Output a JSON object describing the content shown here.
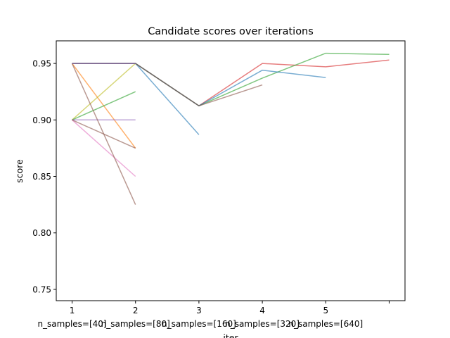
{
  "chart_data": {
    "type": "line",
    "title": "Candidate scores over iterations",
    "xlabel": "iter",
    "ylabel": "score",
    "xlim": [
      0.75,
      6.25
    ],
    "ylim": [
      0.74,
      0.97
    ],
    "x_ticks": [
      1,
      2,
      3,
      4,
      5,
      6
    ],
    "x_tick_labels": [
      "1",
      "2",
      "3",
      "4",
      "5",
      ""
    ],
    "y_ticks": [
      0.75,
      0.8,
      0.85,
      0.9,
      0.95
    ],
    "y_tick_labels": [
      "0.75",
      "0.80",
      "0.85",
      "0.90",
      "0.95"
    ],
    "secondary_x_labels": [
      {
        "x": 1,
        "text": "n_samples=[40]"
      },
      {
        "x": 2,
        "text": "n_samples=[80]"
      },
      {
        "x": 3,
        "text": "n_samples=[160]"
      },
      {
        "x": 4,
        "text": "n_samples=[320]"
      },
      {
        "x": 5,
        "text": "n_samples=[640]"
      }
    ],
    "grid": false,
    "series": [
      {
        "x": [
          1,
          2
        ],
        "values": [
          0.95,
          0.875
        ],
        "color": "#ff7f0e"
      },
      {
        "x": [
          1,
          2
        ],
        "values": [
          0.9,
          0.95
        ],
        "color": "#bcbd22"
      },
      {
        "x": [
          1,
          2
        ],
        "values": [
          0.9,
          0.925
        ],
        "color": "#2ca02c"
      },
      {
        "x": [
          1,
          2
        ],
        "values": [
          0.9,
          0.9
        ],
        "color": "#9467bd"
      },
      {
        "x": [
          1,
          2
        ],
        "values": [
          0.9,
          0.85
        ],
        "color": "#e377c2"
      },
      {
        "x": [
          1,
          2
        ],
        "values": [
          0.9,
          0.875
        ],
        "color": "#8c564b"
      },
      {
        "x": [
          1,
          2
        ],
        "values": [
          0.95,
          0.825
        ],
        "color": "#8c564b"
      },
      {
        "x": [
          1,
          2,
          3
        ],
        "values": [
          0.95,
          0.95,
          0.887
        ],
        "color": "#1f77b4"
      },
      {
        "x": [
          1,
          2,
          3,
          4,
          5,
          6
        ],
        "values": [
          0.95,
          0.95,
          0.9125,
          0.95,
          0.947,
          0.953
        ],
        "color": "#d62728"
      },
      {
        "x": [
          1,
          2,
          3,
          4,
          5,
          6
        ],
        "values": [
          0.95,
          0.95,
          0.9125,
          0.937,
          0.959,
          0.958
        ],
        "color": "#2ca02c"
      },
      {
        "x": [
          1,
          2,
          3,
          4,
          5
        ],
        "values": [
          0.95,
          0.95,
          0.9125,
          0.944,
          0.9375
        ],
        "color": "#1f77b4"
      },
      {
        "x": [
          1,
          2,
          3,
          4
        ],
        "values": [
          0.95,
          0.95,
          0.9125,
          0.931
        ],
        "color": "#8c564b"
      },
      {
        "x": [
          1,
          2
        ],
        "values": [
          0.95,
          0.95
        ],
        "color": "#9467bd"
      }
    ]
  }
}
